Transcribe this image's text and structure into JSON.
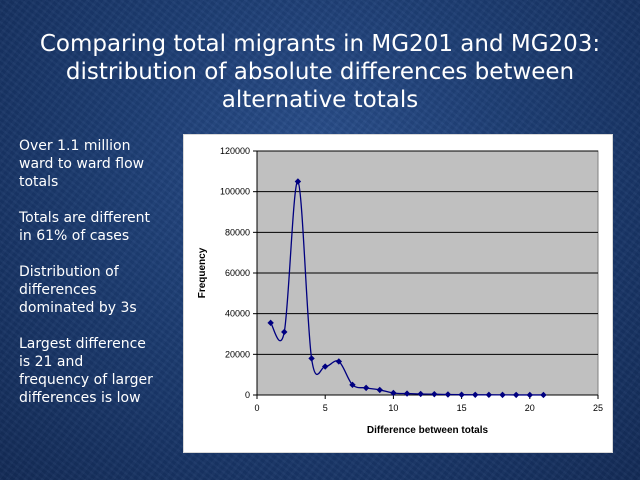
{
  "title": {
    "lines": [
      "Comparing total migrants in MG201 and MG203:",
      "distribution of absolute differences between",
      "alternative totals"
    ]
  },
  "bullets": [
    [
      "Over 1.1 million",
      "ward to ward flow",
      "totals"
    ],
    [
      "Totals are different",
      "in 61% of cases"
    ],
    [
      "Distribution of",
      "differences",
      "dominated by 3s"
    ],
    [
      "Largest difference",
      "is 21 and",
      "frequency of larger",
      "differences is low"
    ]
  ],
  "colors": {
    "background": "#1d3d73",
    "plot_area": "#c0c0c0",
    "series": "#000080",
    "text": "#ffffff"
  },
  "chart_data": {
    "type": "line",
    "xlabel": "Difference between totals",
    "ylabel": "Frequency",
    "xlim": [
      0,
      25
    ],
    "ylim": [
      0,
      120000
    ],
    "xticks": [
      0,
      5,
      10,
      15,
      20,
      25
    ],
    "yticks": [
      0,
      20000,
      40000,
      60000,
      80000,
      100000,
      120000
    ],
    "grid": true,
    "smoothed": true,
    "series": [
      {
        "x": [
          1,
          2,
          3,
          4,
          5,
          6,
          7,
          8,
          9,
          10,
          11,
          12,
          13,
          14,
          15,
          16,
          17,
          18,
          19,
          20,
          21
        ],
        "y": [
          35500,
          31000,
          105000,
          18000,
          14000,
          16500,
          5000,
          3500,
          2500,
          1000,
          700,
          500,
          400,
          250,
          150,
          100,
          80,
          60,
          40,
          30,
          20
        ]
      }
    ]
  }
}
